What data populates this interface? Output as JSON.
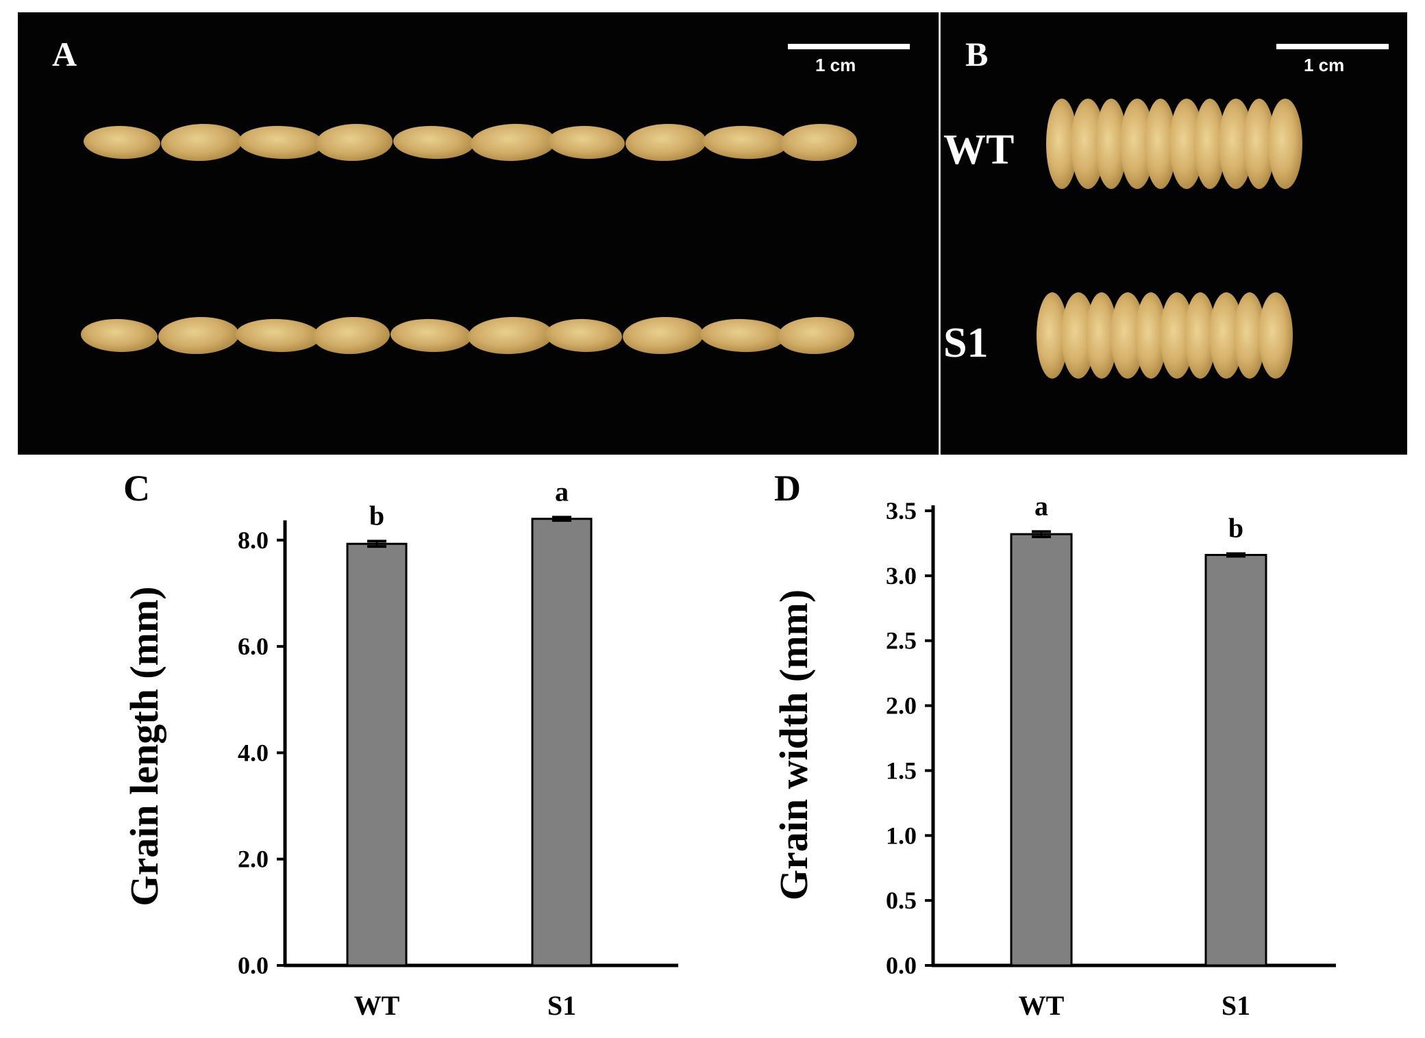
{
  "photos": {
    "panel_a": {
      "letter": "A",
      "scale_label": "1 cm"
    },
    "panel_b": {
      "letter": "B",
      "scale_label": "1 cm",
      "row_labels": [
        "WT",
        "S1"
      ]
    }
  },
  "chart_data": [
    {
      "panel": "C",
      "type": "bar",
      "categories": [
        "WT",
        "S1"
      ],
      "values": [
        7.93,
        8.4
      ],
      "errors": [
        0.05,
        0.03
      ],
      "significance": [
        "b",
        "a"
      ],
      "ylabel": "Grain  length (mm)",
      "ylim": [
        0,
        8.5
      ],
      "yticks": [
        "0.0",
        "2.0",
        "4.0",
        "6.0",
        "8.0"
      ],
      "ytick_values": [
        0,
        2,
        4,
        6,
        8
      ],
      "bar_color": "#808080",
      "grid": false
    },
    {
      "panel": "D",
      "type": "bar",
      "categories": [
        "WT",
        "S1"
      ],
      "values": [
        3.32,
        3.16
      ],
      "errors": [
        0.02,
        0.01
      ],
      "significance": [
        "a",
        "b"
      ],
      "ylabel": "Grain width (mm)",
      "ylim": [
        0,
        3.5
      ],
      "yticks": [
        "0.0",
        "0.5",
        "1.0",
        "1.5",
        "2.0",
        "2.5",
        "3.0",
        "3.5"
      ],
      "ytick_values": [
        0,
        0.5,
        1.0,
        1.5,
        2.0,
        2.5,
        3.0,
        3.5
      ],
      "bar_color": "#808080",
      "grid": false
    }
  ]
}
